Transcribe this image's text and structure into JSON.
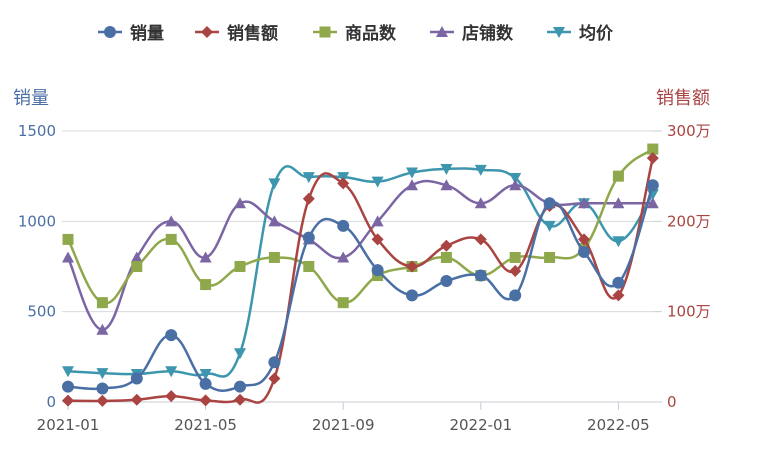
{
  "chart_data": {
    "type": "line",
    "x": [
      "2021-01",
      "2021-02",
      "2021-03",
      "2021-04",
      "2021-05",
      "2021-06",
      "2021-07",
      "2021-08",
      "2021-09",
      "2021-10",
      "2021-11",
      "2021-12",
      "2022-01",
      "2022-02",
      "2022-03",
      "2022-04",
      "2022-05",
      "2022-06"
    ],
    "x_tick_labels": [
      "2021-01",
      "2021-05",
      "2021-09",
      "2022-01",
      "2022-05"
    ],
    "left_axis": {
      "label": "销量",
      "ticks": [
        "0",
        "500",
        "1000",
        "1500"
      ],
      "ylim": [
        0,
        1500
      ],
      "color": "#4a6fa5"
    },
    "right_axis": {
      "label": "销售额",
      "ticks": [
        "0",
        "100万",
        "200万",
        "300万"
      ],
      "ylim": [
        0,
        3000000
      ],
      "color": "#a94442"
    },
    "grid": true,
    "legend_position": "top",
    "series": [
      {
        "name": "销量",
        "axis": "left",
        "color": "#4a6fa5",
        "marker": "circle",
        "values": [
          85,
          75,
          130,
          370,
          100,
          85,
          220,
          910,
          975,
          730,
          590,
          670,
          700,
          590,
          1100,
          830,
          660,
          1200
        ]
      },
      {
        "name": "销售额",
        "axis": "right",
        "color": "#a94442",
        "marker": "diamond",
        "values": [
          15000,
          12000,
          25000,
          65000,
          18000,
          25000,
          260000,
          2250000,
          2420000,
          1800000,
          1500000,
          1730000,
          1800000,
          1450000,
          2170000,
          1800000,
          1180000,
          2700000
        ]
      },
      {
        "name": "商品数",
        "axis": "left",
        "color": "#8fa84b",
        "marker": "square",
        "values": [
          900,
          550,
          750,
          900,
          650,
          750,
          800,
          750,
          550,
          700,
          750,
          800,
          700,
          800,
          800,
          850,
          1250,
          1400
        ]
      },
      {
        "name": "店铺数",
        "axis": "left",
        "color": "#7b65a3",
        "marker": "triangle-up",
        "values": [
          800,
          400,
          800,
          1000,
          800,
          1100,
          1000,
          900,
          800,
          1000,
          1200,
          1200,
          1100,
          1200,
          1100,
          1100,
          1100,
          1100
        ]
      },
      {
        "name": "均价",
        "axis": "left",
        "color": "#3d96ad",
        "marker": "triangle-down",
        "values": [
          170,
          160,
          155,
          170,
          155,
          270,
          1210,
          1245,
          1245,
          1220,
          1270,
          1290,
          1285,
          1240,
          975,
          1100,
          890,
          1150
        ]
      }
    ]
  }
}
